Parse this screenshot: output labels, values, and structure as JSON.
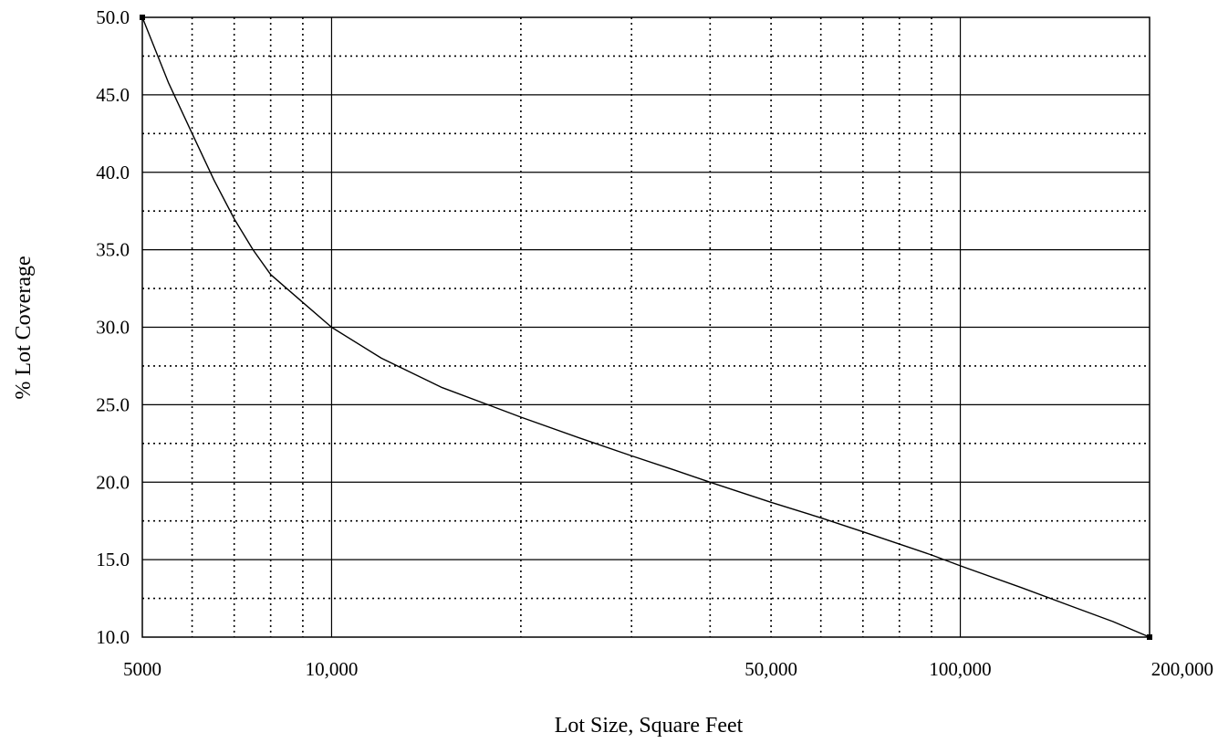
{
  "chart_data": {
    "type": "line",
    "xlabel": "Lot Size, Square Feet",
    "ylabel": "% Lot Coverage",
    "x_scale": "log",
    "xlim": [
      5000,
      200000
    ],
    "ylim": [
      10.0,
      50.0
    ],
    "x_ticks": [
      {
        "value": 5000,
        "label": "5000"
      },
      {
        "value": 10000,
        "label": "10,000"
      },
      {
        "value": 50000,
        "label": "50,000"
      },
      {
        "value": 100000,
        "label": "100,000"
      },
      {
        "value": 200000,
        "label": "200,000"
      }
    ],
    "y_ticks": [
      {
        "value": 10.0,
        "label": "10.0"
      },
      {
        "value": 15.0,
        "label": "15.0"
      },
      {
        "value": 20.0,
        "label": "20.0"
      },
      {
        "value": 25.0,
        "label": "25.0"
      },
      {
        "value": 30.0,
        "label": "30.0"
      },
      {
        "value": 35.0,
        "label": "35.0"
      },
      {
        "value": 40.0,
        "label": "40.0"
      },
      {
        "value": 45.0,
        "label": "45.0"
      },
      {
        "value": 50.0,
        "label": "50.0"
      }
    ],
    "x_major_gridlines": [
      10000,
      100000
    ],
    "x_minor_gridlines": [
      6000,
      7000,
      8000,
      9000,
      20000,
      30000,
      40000,
      50000,
      60000,
      70000,
      80000,
      90000
    ],
    "y_minor_gridlines": [
      12.5,
      17.5,
      22.5,
      27.5,
      32.5,
      37.5,
      42.5,
      47.5
    ],
    "grid": true,
    "legend": "none",
    "series": [
      {
        "x": [
          5000,
          5500,
          6000,
          6500,
          7000,
          7500,
          8000,
          9000,
          10000,
          12000,
          15000,
          18000,
          20000,
          25000,
          30000,
          35000,
          40000,
          50000,
          60000,
          70000,
          80000,
          90000,
          100000,
          125000,
          150000,
          175000,
          200000
        ],
        "y": [
          50.0,
          45.8,
          42.5,
          39.5,
          37.0,
          35.0,
          33.4,
          31.6,
          30.0,
          28.0,
          26.1,
          24.9,
          24.2,
          22.8,
          21.7,
          20.8,
          20.0,
          18.7,
          17.7,
          16.8,
          16.0,
          15.3,
          14.6,
          13.2,
          12.0,
          11.0,
          10.0
        ]
      }
    ]
  }
}
